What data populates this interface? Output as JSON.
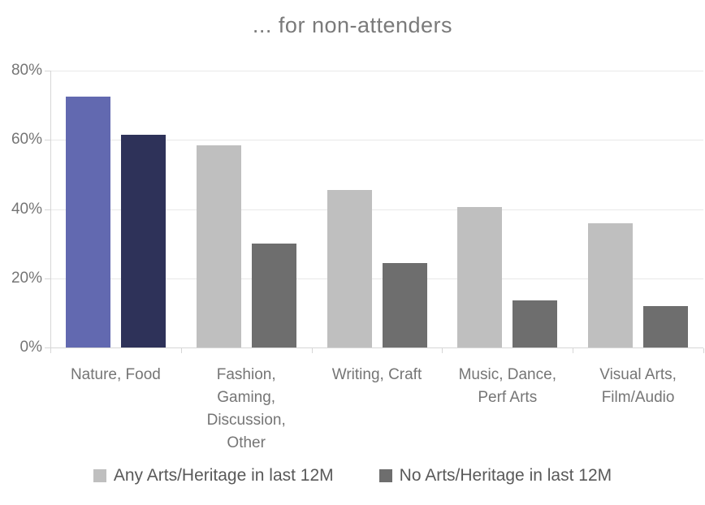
{
  "chart_data": {
    "type": "bar",
    "title": "... for non-attenders",
    "categories": [
      "Nature, Food",
      "Fashion, Gaming, Discussion, Other",
      "Writing, Craft",
      "Music, Dance, Perf Arts",
      "Visual Arts, Film/Audio"
    ],
    "category_display_lines": [
      [
        "Nature, Food"
      ],
      [
        "Fashion,",
        "Gaming,",
        "Discussion,",
        "Other"
      ],
      [
        "Writing, Craft"
      ],
      [
        "Music, Dance,",
        "Perf Arts"
      ],
      [
        "Visual Arts,",
        "Film/Audio"
      ]
    ],
    "series": [
      {
        "name": "Any Arts/Heritage in last 12M",
        "values": [
          72.5,
          58.5,
          45.5,
          40.5,
          36
        ],
        "color": "#bfbfbf",
        "highlight_color": "#6269b0"
      },
      {
        "name": "No Arts/Heritage in last 12M",
        "values": [
          61.5,
          30,
          24.5,
          13.5,
          12
        ],
        "color": "#6e6e6e",
        "highlight_color": "#2e3259"
      }
    ],
    "highlight_category_index": 0,
    "y_axis": {
      "min": 0,
      "max": 80,
      "tick_step": 20,
      "tick_labels": [
        "0%",
        "20%",
        "40%",
        "60%",
        "80%"
      ],
      "unit": "%"
    },
    "grid": true,
    "legend_position": "bottom"
  },
  "colors": {
    "background": "#ffffff",
    "gridline": "#e8e8e8",
    "axis_line": "#d6d6d6",
    "title_text": "#7a7a7a",
    "axis_label_text": "#757575",
    "legend_text": "#595959"
  }
}
